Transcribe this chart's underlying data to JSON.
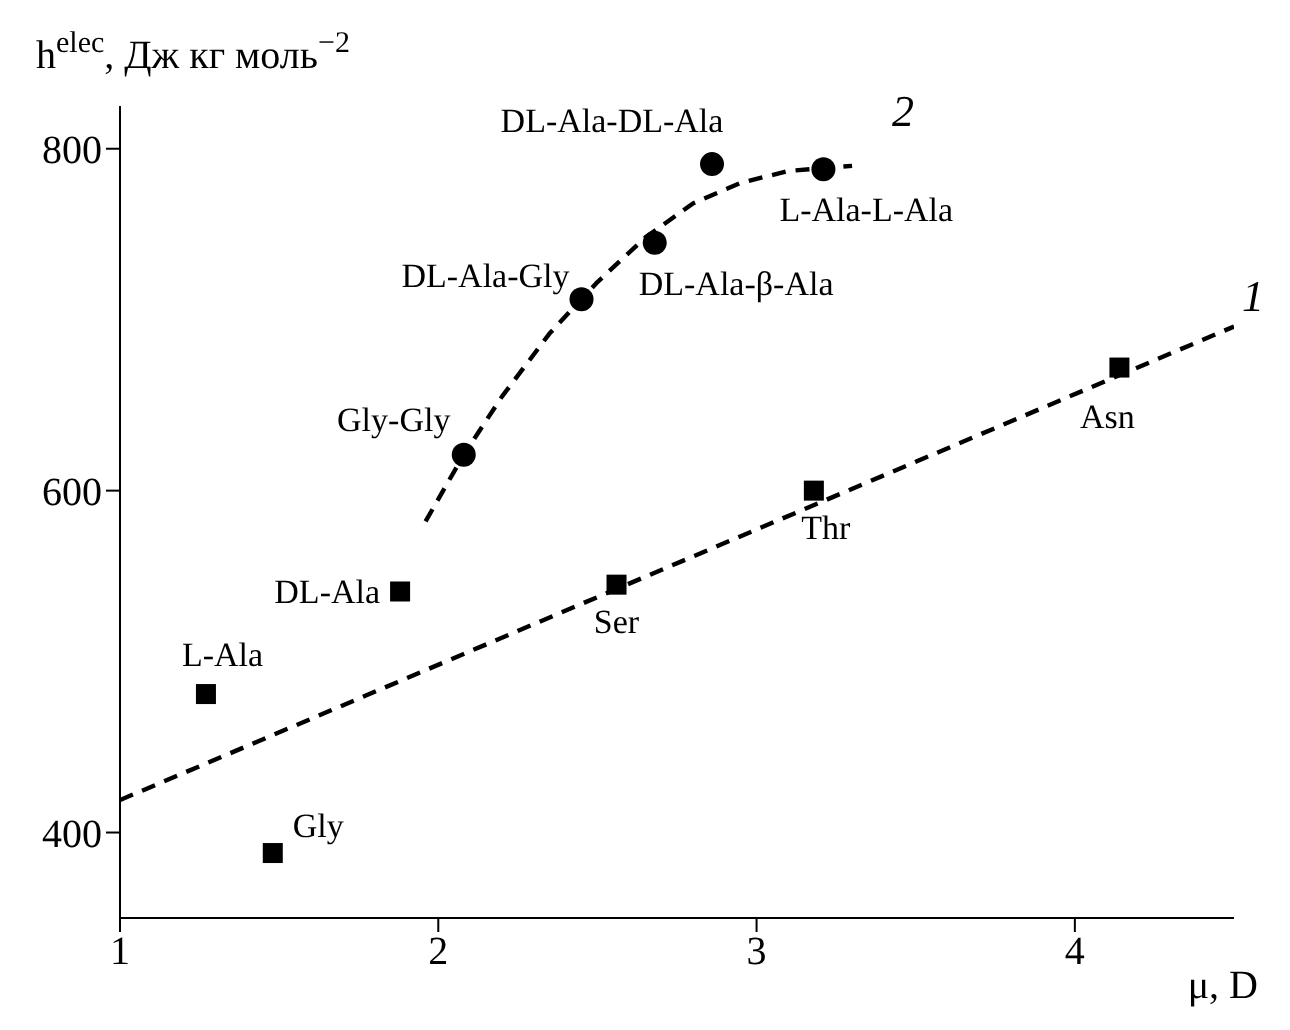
{
  "chart_data": {
    "type": "scatter",
    "xlabel": "μ, D",
    "ylabel": "h$^{elec}$, Дж кг моль$^{−2}$",
    "xlim": [
      1,
      4.5
    ],
    "ylim": [
      350,
      825
    ],
    "xticks": [
      1,
      2,
      3,
      4
    ],
    "yticks": [
      400,
      600,
      800
    ],
    "grid": false,
    "legend": false,
    "series": [
      {
        "marker": "square",
        "color": "#000000",
        "x": [
          1.48,
          1.27,
          1.88,
          2.56,
          3.18,
          4.14
        ],
        "values": [
          388,
          481,
          541,
          545,
          600,
          672
        ]
      },
      {
        "marker": "circle",
        "color": "#000000",
        "x": [
          2.08,
          2.45,
          2.68,
          2.86,
          3.21
        ],
        "values": [
          621,
          712,
          745,
          791,
          788
        ]
      },
      {
        "type": "line",
        "name": "1",
        "line_style": "dashed",
        "marker": "none",
        "color": "#000000",
        "x": [
          1,
          4.5
        ],
        "values": [
          419,
          696
        ]
      },
      {
        "type": "line",
        "name": "2",
        "line_style": "dashed",
        "marker": "none",
        "color": "#000000",
        "x": [
          1.96,
          2.08,
          2.2,
          2.35,
          2.5,
          2.65,
          2.8,
          2.95,
          3.1,
          3.3
        ],
        "values": [
          582,
          621,
          655,
          692,
          722,
          748,
          768,
          780,
          787,
          790
        ]
      }
    ],
    "annotations": [
      {
        "text": "Gly",
        "x": 1.48,
        "y": 388
      },
      {
        "text": "L-Ala",
        "x": 1.27,
        "y": 481
      },
      {
        "text": "DL-Ala",
        "x": 1.88,
        "y": 541
      },
      {
        "text": "Ser",
        "x": 2.56,
        "y": 545
      },
      {
        "text": "Thr",
        "x": 3.18,
        "y": 600
      },
      {
        "text": "Asn",
        "x": 4.14,
        "y": 672
      },
      {
        "text": "Gly-Gly",
        "x": 2.08,
        "y": 621
      },
      {
        "text": "DL-Ala-Gly",
        "x": 2.45,
        "y": 712
      },
      {
        "text": "DL-Ala-β-Ala",
        "x": 2.68,
        "y": 745
      },
      {
        "text": "DL-Ala-DL-Ala",
        "x": 2.86,
        "y": 791
      },
      {
        "text": "L-Ala-L-Ala",
        "x": 3.21,
        "y": 788
      }
    ]
  }
}
